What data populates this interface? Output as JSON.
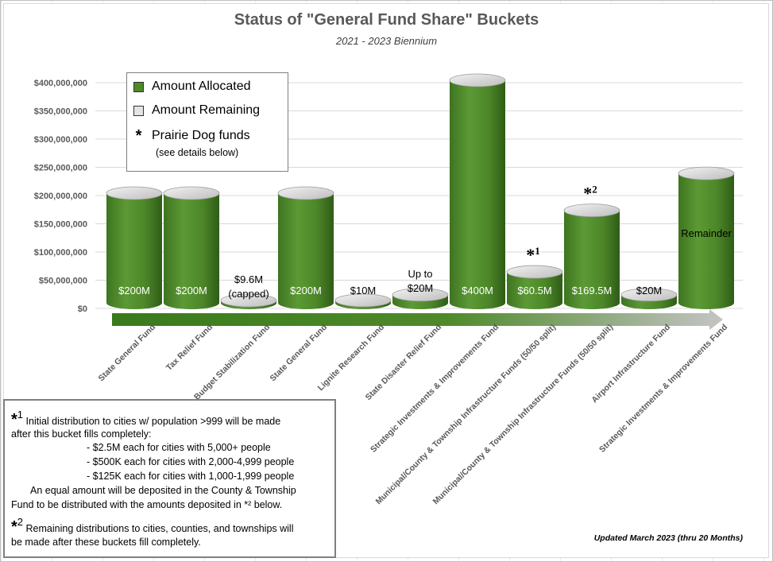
{
  "chart_data": {
    "type": "bar",
    "title": "Status of \"General Fund Share\" Buckets",
    "subtitle": "2021 - 2023 Biennium",
    "categories": [
      "State General Fund",
      "Tax Relief Fund",
      "Budget Stabilization Fund",
      "State General Fund",
      "Lignite Research Fund",
      "State Disaster Relief Fund",
      "Strategic Investments & Improvements Fund",
      "Municipal/County & Township Infrastructure Funds (50/50 split)",
      "Municipal/County & Township Infrastructure Funds (50/50 split)",
      "Airport Infrastructure Fund",
      "Strategic Investments & Improvements Fund"
    ],
    "series": [
      {
        "name": "Amount Allocated",
        "values": [
          200000000,
          200000000,
          9600000,
          200000000,
          10000000,
          20000000,
          400000000,
          60500000,
          169500000,
          20000000,
          235000000
        ]
      },
      {
        "name": "Amount Remaining",
        "values": [
          0,
          0,
          0,
          0,
          0,
          0,
          0,
          0,
          0,
          0,
          0
        ]
      }
    ],
    "data_labels": [
      "$200M",
      "$200M",
      "$9.6M (capped)",
      "$200M",
      "$10M",
      "Up to $20M",
      "$400M",
      "$60.5M",
      "$169.5M",
      "$20M",
      "Remainder"
    ],
    "markers": [
      "",
      "",
      "",
      "",
      "",
      "",
      "",
      "*1",
      "*2",
      "",
      ""
    ],
    "ylim": [
      0,
      400000000
    ],
    "yticks": [
      0,
      50000000,
      100000000,
      150000000,
      200000000,
      250000000,
      300000000,
      350000000,
      400000000
    ],
    "ytick_labels": [
      "$0",
      "$50,000,000",
      "$100,000,000",
      "$150,000,000",
      "$200,000,000",
      "$250,000,000",
      "$300,000,000",
      "$350,000,000",
      "$400,000,000"
    ],
    "xlabel": "",
    "ylabel": "",
    "grid": true,
    "legend": "top-left",
    "colors": {
      "allocated": "#4f8a2a",
      "remaining": "#e4e4e4"
    }
  },
  "legend": {
    "allocated": "Amount Allocated",
    "remaining": "Amount Remaining",
    "prairie_star": "*",
    "prairie": "Prairie Dog funds",
    "note": "(see details below)"
  },
  "footnotes": {
    "fn1_star": "*",
    "fn1_num": "1",
    "fn1_line1": "Initial distribution to cities w/ population >999 will be made",
    "fn1_line2": "after this bucket fills completely:",
    "fn1_item1": "- $2.5M each for cities with 5,000+ people",
    "fn1_item2": "- $500K each for cities with 2,000-4,999 people",
    "fn1_item3": "- $125K each for cities with 1,000-1,999 people",
    "fn1_line3": "An equal amount will be deposited in the County & Township",
    "fn1_line4": "Fund to be distributed with the amounts deposited in *² below.",
    "fn2_star": "*",
    "fn2_num": "2",
    "fn2_line1": "Remaining distributions to cities, counties, and townships will",
    "fn2_line2": "be made after these buckets fill completely."
  },
  "updated": "Updated March 2023 (thru 20 Months)"
}
